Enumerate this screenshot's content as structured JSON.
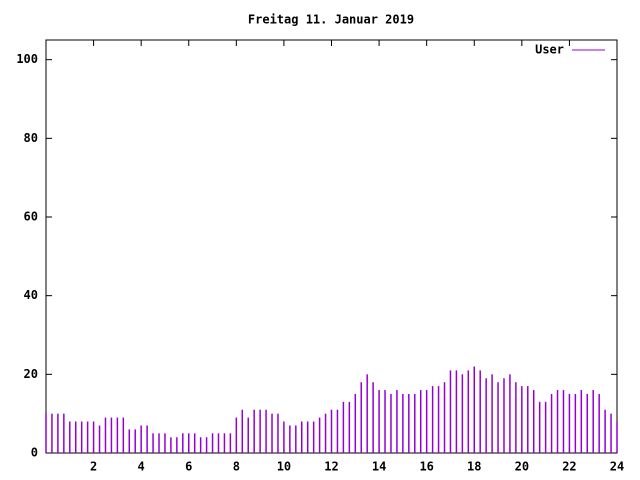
{
  "chart_data": {
    "type": "impulses",
    "title": "Freitag 11. Januar 2019",
    "x": [
      0,
      0.25,
      0.5,
      0.75,
      1,
      1.25,
      1.5,
      1.75,
      2,
      2.25,
      2.5,
      2.75,
      3,
      3.25,
      3.5,
      3.75,
      4,
      4.25,
      4.5,
      4.75,
      5,
      5.25,
      5.5,
      5.75,
      6,
      6.25,
      6.5,
      6.75,
      7,
      7.25,
      7.5,
      7.75,
      8,
      8.25,
      8.5,
      8.75,
      9,
      9.25,
      9.5,
      9.75,
      10,
      10.25,
      10.5,
      10.75,
      11,
      11.25,
      11.5,
      11.75,
      12,
      12.25,
      12.5,
      12.75,
      13,
      13.25,
      13.5,
      13.75,
      14,
      14.25,
      14.5,
      14.75,
      15,
      15.25,
      15.5,
      15.75,
      16,
      16.25,
      16.5,
      16.75,
      17,
      17.25,
      17.5,
      17.75,
      18,
      18.25,
      18.5,
      18.75,
      19,
      19.25,
      19.5,
      19.75,
      20,
      20.25,
      20.5,
      20.75,
      21,
      21.25,
      21.5,
      21.75,
      22,
      22.25,
      22.5,
      22.75,
      23,
      23.25,
      23.5,
      23.75,
      24
    ],
    "series": [
      {
        "name": "User",
        "color": "#9400d3",
        "values": [
          10,
          10,
          10,
          10,
          8,
          8,
          8,
          8,
          8,
          7,
          9,
          9,
          9,
          9,
          6,
          6,
          7,
          7,
          5,
          5,
          5,
          4,
          4,
          5,
          5,
          5,
          4,
          4,
          5,
          5,
          5,
          5,
          9,
          11,
          9,
          11,
          11,
          11,
          10,
          10,
          8,
          7,
          7,
          8,
          8,
          8,
          9,
          10,
          11,
          11,
          13,
          13,
          15,
          18,
          20,
          18,
          16,
          16,
          15,
          16,
          15,
          15,
          15,
          16,
          16,
          17,
          17,
          18,
          21,
          21,
          20,
          21,
          22,
          21,
          19,
          20,
          18,
          19,
          20,
          18,
          17,
          17,
          16,
          13,
          13,
          15,
          16,
          16,
          15,
          15,
          16,
          15,
          16,
          15,
          11,
          10,
          8
        ]
      }
    ],
    "xlim": [
      0,
      24
    ],
    "xticks": [
      2,
      4,
      6,
      8,
      10,
      12,
      14,
      16,
      18,
      20,
      22,
      24
    ],
    "ylim": [
      0,
      105
    ],
    "yticks": [
      0,
      20,
      40,
      60,
      80,
      100
    ],
    "legend": "top-right"
  }
}
